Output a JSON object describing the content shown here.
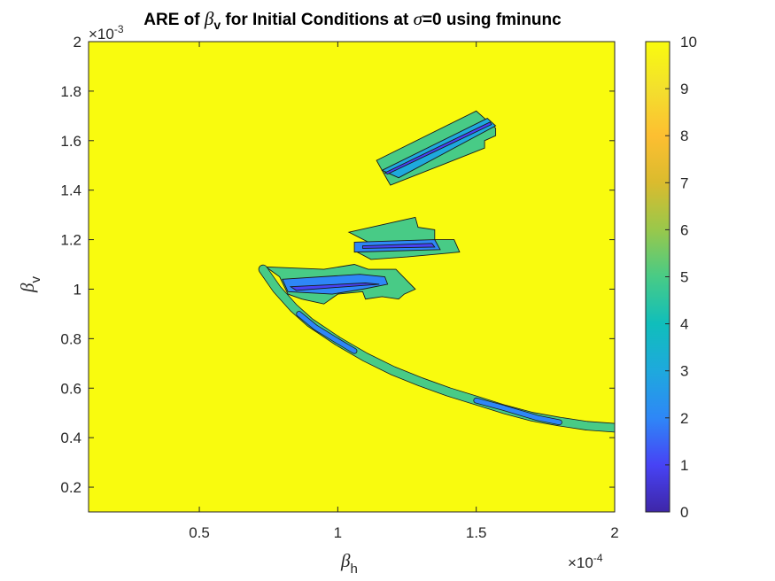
{
  "chart_data": {
    "type": "heatmap",
    "title": {
      "prefix": "ARE of ",
      "symbol": "β",
      "symbol_sub": "v",
      "middle": " for Initial Conditions at ",
      "sigma": "σ",
      "suffix": "=0 using fminunc"
    },
    "xlabel": {
      "symbol": "β",
      "sub": "h"
    },
    "ylabel": {
      "symbol": "β",
      "sub": "v"
    },
    "x_exponent": {
      "base": "×10",
      "power": "-4"
    },
    "y_exponent": {
      "base": "×10",
      "power": "-3"
    },
    "xlim": [
      0.1,
      2.0
    ],
    "ylim": [
      0.1,
      2.0
    ],
    "x_ticks": [
      0.5,
      1,
      1.5,
      2
    ],
    "x_tick_labels": [
      "0.5",
      "1",
      "1.5",
      "2"
    ],
    "y_ticks": [
      0.2,
      0.4,
      0.6,
      0.8,
      1.0,
      1.2,
      1.4,
      1.6,
      1.8,
      2.0
    ],
    "y_tick_labels": [
      "0.2",
      "0.4",
      "0.6",
      "0.8",
      "1",
      "1.2",
      "1.4",
      "1.6",
      "1.8",
      "2"
    ],
    "colorbar": {
      "range": [
        0,
        10
      ],
      "ticks": [
        0,
        1,
        2,
        3,
        4,
        5,
        6,
        7,
        8,
        9,
        10
      ],
      "tick_labels": [
        "0",
        "1",
        "2",
        "3",
        "4",
        "5",
        "6",
        "7",
        "8",
        "9",
        "10"
      ],
      "colormap": [
        "#3e26a8",
        "#4743f5",
        "#2e87f7",
        "#1ea9dd",
        "#10bebb",
        "#48cb86",
        "#99c84b",
        "#dabb2e",
        "#fdbf31",
        "#f3e02d",
        "#f9fb0e"
      ]
    },
    "background_value": 10,
    "regions": [
      {
        "name": "upper-band",
        "value": 5,
        "polygon": [
          [
            1.14,
            1.52
          ],
          [
            1.5,
            1.72
          ],
          [
            1.57,
            1.65
          ],
          [
            1.57,
            1.62
          ],
          [
            1.53,
            1.6
          ],
          [
            1.53,
            1.57
          ],
          [
            1.19,
            1.42
          ],
          [
            1.18,
            1.44
          ]
        ]
      },
      {
        "name": "upper-band-core",
        "value": 2.5,
        "polygon": [
          [
            1.16,
            1.48
          ],
          [
            1.54,
            1.69
          ],
          [
            1.57,
            1.66
          ],
          [
            1.22,
            1.45
          ]
        ]
      },
      {
        "name": "upper-band-center",
        "value": 0.5,
        "polygon": [
          [
            1.17,
            1.47
          ],
          [
            1.55,
            1.675
          ],
          [
            1.555,
            1.665
          ],
          [
            1.18,
            1.465
          ]
        ]
      },
      {
        "name": "middle-band",
        "value": 5,
        "polygon": [
          [
            1.04,
            1.23
          ],
          [
            1.28,
            1.29
          ],
          [
            1.29,
            1.25
          ],
          [
            1.35,
            1.24
          ],
          [
            1.35,
            1.2
          ],
          [
            1.42,
            1.2
          ],
          [
            1.44,
            1.15
          ],
          [
            1.25,
            1.13
          ],
          [
            1.12,
            1.12
          ],
          [
            1.07,
            1.15
          ],
          [
            1.11,
            1.19
          ]
        ]
      },
      {
        "name": "middle-band-core",
        "value": 2,
        "polygon": [
          [
            1.06,
            1.19
          ],
          [
            1.35,
            1.2
          ],
          [
            1.37,
            1.16
          ],
          [
            1.06,
            1.15
          ]
        ]
      },
      {
        "name": "middle-band-center",
        "value": 0.5,
        "polygon": [
          [
            1.09,
            1.175
          ],
          [
            1.34,
            1.185
          ],
          [
            1.35,
            1.17
          ],
          [
            1.09,
            1.165
          ]
        ]
      },
      {
        "name": "lower-band",
        "value": 5,
        "polygon": [
          [
            0.74,
            1.09
          ],
          [
            0.95,
            1.08
          ],
          [
            1.06,
            1.1
          ],
          [
            1.11,
            1.08
          ],
          [
            1.21,
            1.08
          ],
          [
            1.28,
            1.0
          ],
          [
            1.24,
            0.98
          ],
          [
            1.22,
            0.96
          ],
          [
            1.16,
            0.97
          ],
          [
            1.1,
            0.96
          ],
          [
            1.09,
            0.99
          ],
          [
            1.0,
            0.98
          ],
          [
            0.95,
            0.94
          ],
          [
            0.87,
            0.96
          ],
          [
            0.82,
            0.98
          ],
          [
            0.79,
            1.05
          ]
        ]
      },
      {
        "name": "lower-band-core",
        "value": 2,
        "polygon": [
          [
            0.8,
            1.04
          ],
          [
            1.08,
            1.06
          ],
          [
            1.17,
            1.05
          ],
          [
            1.18,
            1.02
          ],
          [
            1.09,
            1.0
          ],
          [
            0.98,
            0.98
          ],
          [
            0.82,
            0.99
          ]
        ]
      },
      {
        "name": "lower-band-center",
        "value": 0.5,
        "polygon": [
          [
            0.83,
            1.01
          ],
          [
            1.1,
            1.025
          ],
          [
            1.15,
            1.02
          ],
          [
            0.85,
            0.995
          ]
        ]
      },
      {
        "name": "curve-ridge",
        "value": 5,
        "polyline": [
          [
            0.73,
            1.08
          ],
          [
            0.78,
            1.0
          ],
          [
            0.84,
            0.925
          ],
          [
            0.9,
            0.865
          ],
          [
            1.0,
            0.79
          ],
          [
            1.1,
            0.725
          ],
          [
            1.2,
            0.67
          ],
          [
            1.3,
            0.625
          ],
          [
            1.4,
            0.585
          ],
          [
            1.5,
            0.55
          ],
          [
            1.6,
            0.515
          ],
          [
            1.7,
            0.485
          ],
          [
            1.8,
            0.465
          ],
          [
            1.9,
            0.448
          ],
          [
            2.0,
            0.44
          ]
        ]
      },
      {
        "name": "curve-ridge-core",
        "value": 1.5,
        "polyline": [
          [
            0.86,
            0.9
          ],
          [
            0.92,
            0.845
          ],
          [
            1.0,
            0.79
          ],
          [
            1.06,
            0.75
          ]
        ]
      },
      {
        "name": "curve-ridge-core-2",
        "value": 1.5,
        "polyline": [
          [
            1.5,
            0.55
          ],
          [
            1.6,
            0.52
          ],
          [
            1.72,
            0.48
          ],
          [
            1.8,
            0.462
          ]
        ]
      }
    ]
  }
}
